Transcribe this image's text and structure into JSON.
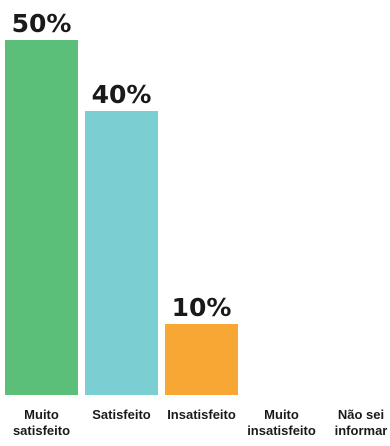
{
  "chart_data": {
    "type": "bar",
    "categories": [
      [
        "Muito",
        "satisfeito"
      ],
      [
        "Satisfeito"
      ],
      [
        "Insatisfeito"
      ],
      [
        "Muito",
        "insatisfeito"
      ],
      [
        "Não sei",
        "informar"
      ]
    ],
    "values": [
      50,
      40,
      10,
      0,
      0
    ],
    "value_labels": [
      "50%",
      "40%",
      "10%",
      "",
      ""
    ],
    "colors": [
      "#5bbf7a",
      "#7bcfd2",
      "#f7a733",
      "#ffffff",
      "#ffffff"
    ],
    "ylim": [
      0,
      50
    ],
    "grid": false,
    "legend": "none"
  }
}
